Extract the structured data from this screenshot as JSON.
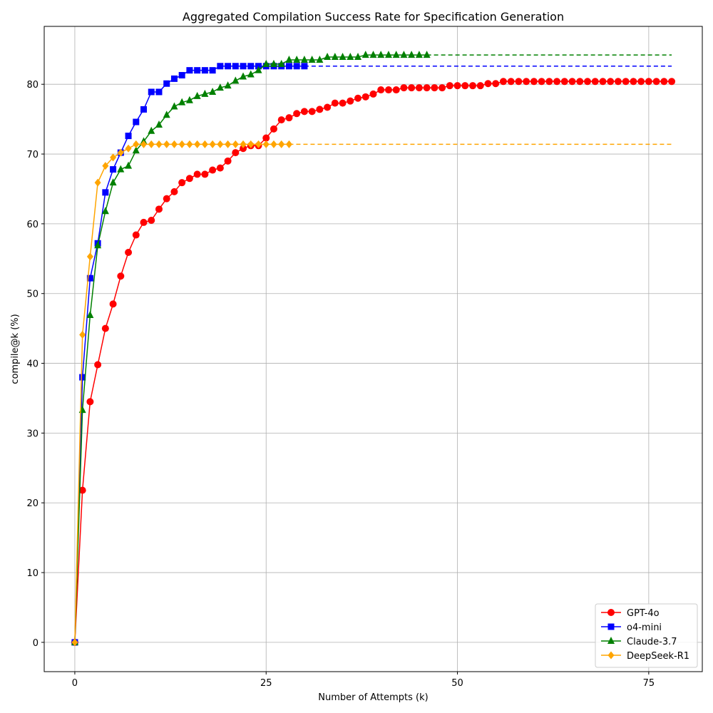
{
  "chart_data": {
    "type": "line",
    "title": "Aggregated Compilation Success Rate for Specification Generation",
    "xlabel": "Number of Attempts (k)",
    "ylabel": "compile@k (%)",
    "xlim": [
      -4,
      82
    ],
    "ylim": [
      -4.2,
      88.3
    ],
    "xticks": [
      0,
      25,
      50,
      75
    ],
    "yticks": [
      0,
      10,
      20,
      30,
      40,
      50,
      60,
      70,
      80
    ],
    "grid": true,
    "legend_position": "bottom-right",
    "series": [
      {
        "name": "GPT-4o",
        "color": "#ff0000",
        "marker": "circle",
        "values": [
          0,
          21.8,
          34.5,
          39.8,
          45.0,
          48.5,
          52.5,
          55.9,
          58.4,
          60.2,
          60.5,
          62.1,
          63.6,
          64.6,
          65.9,
          66.5,
          67.1,
          67.1,
          67.7,
          68.0,
          69.0,
          70.2,
          70.8,
          71.2,
          71.2,
          72.3,
          73.6,
          74.9,
          75.2,
          75.8,
          76.1,
          76.1,
          76.4,
          76.7,
          77.3,
          77.3,
          77.6,
          78.0,
          78.2,
          78.6,
          79.2,
          79.2,
          79.2,
          79.5,
          79.5,
          79.5,
          79.5,
          79.5,
          79.5,
          79.8,
          79.8,
          79.8,
          79.8,
          79.8,
          80.1,
          80.1,
          80.4,
          80.4,
          80.4,
          80.4,
          80.4,
          80.4,
          80.4,
          80.4,
          80.4,
          80.4,
          80.4,
          80.4,
          80.4,
          80.4,
          80.4,
          80.4,
          80.4,
          80.4,
          80.4,
          80.4,
          80.4,
          80.4,
          80.4
        ],
        "extend_to": 78
      },
      {
        "name": "o4-mini",
        "color": "#0000ff",
        "marker": "square",
        "values": [
          0,
          38.0,
          52.2,
          57.2,
          64.5,
          67.8,
          70.2,
          72.6,
          74.6,
          76.4,
          78.9,
          78.9,
          80.1,
          80.8,
          81.3,
          82.0,
          82.0,
          82.0,
          82.0,
          82.6,
          82.6,
          82.6,
          82.6,
          82.6,
          82.6,
          82.6,
          82.6,
          82.6,
          82.6,
          82.6,
          82.6
        ],
        "extend_to": 78
      },
      {
        "name": "Claude-3.7",
        "color": "#008000",
        "marker": "triangle",
        "values": [
          0,
          33.3,
          46.9,
          56.9,
          61.8,
          65.9,
          67.8,
          68.3,
          70.5,
          71.8,
          73.3,
          74.2,
          75.6,
          76.8,
          77.4,
          77.7,
          78.3,
          78.6,
          78.9,
          79.5,
          79.8,
          80.5,
          81.1,
          81.4,
          82.0,
          82.9,
          82.9,
          82.9,
          83.5,
          83.5,
          83.5,
          83.5,
          83.5,
          83.9,
          83.9,
          83.9,
          83.9,
          83.9,
          84.2,
          84.2,
          84.2,
          84.2,
          84.2,
          84.2,
          84.2,
          84.2,
          84.2
        ],
        "extend_to": 78
      },
      {
        "name": "DeepSeek-R1",
        "color": "#ffa500",
        "marker": "diamond",
        "values": [
          0,
          44.1,
          55.3,
          65.9,
          68.3,
          69.5,
          70.2,
          70.8,
          71.4,
          71.4,
          71.4,
          71.4,
          71.4,
          71.4,
          71.4,
          71.4,
          71.4,
          71.4,
          71.4,
          71.4,
          71.4,
          71.4,
          71.4,
          71.4,
          71.4,
          71.4,
          71.4,
          71.4,
          71.4
        ],
        "extend_to": 78
      }
    ]
  }
}
